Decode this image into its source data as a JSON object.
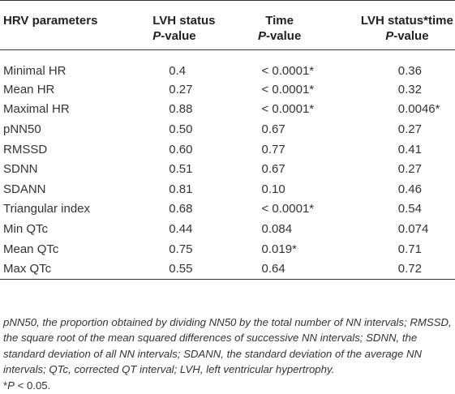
{
  "table": {
    "header_row1": [
      "HRV parameters",
      "LVH status",
      "Time",
      "LVH status*time"
    ],
    "header_row2_p": "P",
    "header_row2_rest": "-value",
    "rows": [
      {
        "param": "Minimal HR",
        "lvh": "0.4",
        "time": "< 0.0001*",
        "interaction": "0.36"
      },
      {
        "param": "Mean HR",
        "lvh": "0.27",
        "time": "< 0.0001*",
        "interaction": "0.32"
      },
      {
        "param": "Maximal HR",
        "lvh": "0.88",
        "time": "< 0.0001*",
        "interaction": "0.0046*"
      },
      {
        "param": "pNN50",
        "lvh": "0.50",
        "time": "0.67",
        "interaction": "0.27"
      },
      {
        "param": "RMSSD",
        "lvh": "0.60",
        "time": "0.77",
        "interaction": "0.41"
      },
      {
        "param": "SDNN",
        "lvh": "0.51",
        "time": "0.67",
        "interaction": "0.27"
      },
      {
        "param": "SDANN",
        "lvh": "0.81",
        "time": "0.10",
        "interaction": "0.46"
      },
      {
        "param": "Triangular index",
        "lvh": "0.68",
        "time": "< 0.0001*",
        "interaction": "0.54"
      },
      {
        "param": "Min QTc",
        "lvh": "0.44",
        "time": "0.084",
        "interaction": "0.074"
      },
      {
        "param": "Mean QTc",
        "lvh": "0.75",
        "time": "0.019*",
        "interaction": "0.71"
      },
      {
        "param": "Max QTc",
        "lvh": "0.55",
        "time": "0.64",
        "interaction": "0.72"
      }
    ]
  },
  "footnote": {
    "text": "pNN50, the proportion obtained by dividing NN50 by the total number of NN intervals; RMSSD, the square root of the mean squared differences of successive NN intervals; SDNN, the standard deviation of all NN intervals; SDANN, the standard deviation of the average NN intervals; QTc, corrected QT interval; LVH, left ventricular hypertrophy.",
    "sig_prefix": "*",
    "sig_p": "P",
    "sig_rest": " < 0.05."
  }
}
